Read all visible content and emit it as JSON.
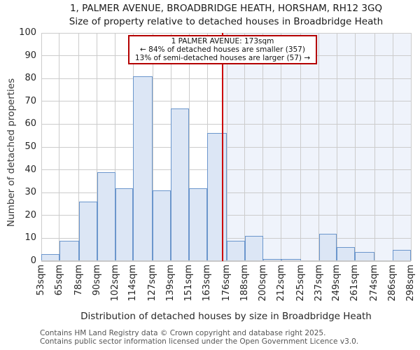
{
  "title": "1, PALMER AVENUE, BROADBRIDGE HEATH, HORSHAM, RH12 3GQ",
  "subtitle": "Size of property relative to detached houses in Broadbridge Heath",
  "annotation": {
    "line1": "1 PALMER AVENUE: 173sqm",
    "line2": "← 84% of detached houses are smaller (357)",
    "line3": "13% of semi-detached houses are larger (57) →"
  },
  "footer": {
    "line1": "Contains HM Land Registry data © Crown copyright and database right 2025.",
    "line2": "Contains public sector information licensed under the Open Government Licence v3.0."
  },
  "chart_data": {
    "type": "bar",
    "title": "1, PALMER AVENUE, BROADBRIDGE HEATH, HORSHAM, RH12 3GQ",
    "subtitle": "Size of property relative to detached houses in Broadbridge Heath",
    "xlabel": "Distribution of detached houses by size in Broadbridge Heath",
    "ylabel": "Number of detached properties",
    "ylim": [
      0,
      100
    ],
    "ytick_step": 10,
    "grid": true,
    "bin_edges_sqm": [
      53,
      65,
      78,
      90,
      102,
      114,
      127,
      139,
      151,
      163,
      176,
      188,
      200,
      212,
      225,
      237,
      249,
      261,
      274,
      286,
      298
    ],
    "xtick_labels": [
      "53sqm",
      "65sqm",
      "78sqm",
      "90sqm",
      "102sqm",
      "114sqm",
      "127sqm",
      "139sqm",
      "151sqm",
      "163sqm",
      "176sqm",
      "188sqm",
      "200sqm",
      "212sqm",
      "225sqm",
      "237sqm",
      "249sqm",
      "261sqm",
      "274sqm",
      "286sqm",
      "298sqm"
    ],
    "values": [
      3,
      9,
      26,
      39,
      32,
      81,
      31,
      67,
      32,
      56,
      9,
      11,
      1,
      1,
      0,
      12,
      6,
      4,
      0,
      5
    ],
    "marker_value_sqm": 173,
    "marker_stats": {
      "smaller_pct": 84,
      "smaller_count": 357,
      "larger_pct": 13,
      "larger_count": 57
    },
    "colors": {
      "bar_fill": "#dce6f5",
      "bar_border": "#6b96cc",
      "marker_line": "#cc0000",
      "annotation_border": "#b40000",
      "gridline": "#cccccc",
      "tint_region": "#eff3fb",
      "spine": "#c8c8c8"
    }
  }
}
